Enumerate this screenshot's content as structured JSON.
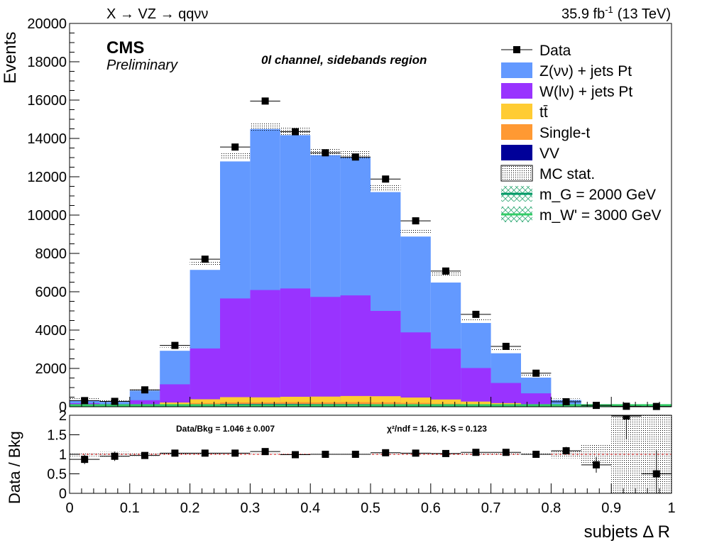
{
  "header": {
    "process": "X → VZ → qqνν",
    "lumi_value": "35.9 fb",
    "lumi_exp": "-1",
    "energy": "(13 TeV)"
  },
  "labels": {
    "experiment": "CMS",
    "status": "Preliminary",
    "region": "0l channel, sidebands region"
  },
  "chart_data": [
    {
      "type": "bar",
      "stacked": true,
      "x": [
        0.025,
        0.075,
        0.125,
        0.175,
        0.225,
        0.275,
        0.325,
        0.375,
        0.425,
        0.475,
        0.525,
        0.575,
        0.625,
        0.675,
        0.725,
        0.775,
        0.825,
        0.875,
        0.925,
        0.975
      ],
      "bin_edges": [
        0,
        0.05,
        0.1,
        0.15,
        0.2,
        0.25,
        0.3,
        0.35,
        0.4,
        0.45,
        0.5,
        0.55,
        0.6,
        0.65,
        0.7,
        0.75,
        0.8,
        0.85,
        0.9,
        0.95,
        1.0
      ],
      "xlim": [
        0,
        1
      ],
      "ylim": [
        0,
        20000
      ],
      "xlabel": "",
      "ylabel": "Events",
      "yticks": [
        0,
        2000,
        4000,
        6000,
        8000,
        10000,
        12000,
        14000,
        16000,
        18000,
        20000
      ],
      "legend_position": "top-right",
      "series": [
        {
          "name": "Z(νν) + jets Pt",
          "color": "#6399ff",
          "values": [
            150,
            120,
            500,
            1750,
            4100,
            7150,
            8400,
            8000,
            7400,
            7200,
            6200,
            5000,
            3450,
            2350,
            1550,
            820,
            220,
            60,
            25,
            10
          ]
        },
        {
          "name": "W(lν) + jets Pt",
          "color": "#9933ff",
          "values": [
            120,
            90,
            250,
            950,
            2650,
            5150,
            5600,
            5650,
            5200,
            5250,
            4450,
            3400,
            2650,
            1750,
            1050,
            570,
            90,
            30,
            10,
            5
          ]
        },
        {
          "name": "tt̄",
          "color": "#ffcc33",
          "values": [
            20,
            15,
            30,
            100,
            200,
            270,
            260,
            280,
            300,
            320,
            320,
            280,
            220,
            150,
            100,
            70,
            20,
            5,
            2,
            1
          ]
        },
        {
          "name": "Single-t",
          "color": "#ff9933",
          "values": [
            15,
            10,
            20,
            40,
            70,
            80,
            80,
            90,
            90,
            100,
            100,
            90,
            70,
            50,
            40,
            30,
            10,
            3,
            1,
            1
          ]
        },
        {
          "name": "VV",
          "color": "#000099",
          "values": [
            30,
            20,
            40,
            80,
            120,
            150,
            150,
            150,
            140,
            140,
            130,
            110,
            90,
            70,
            50,
            30,
            10,
            3,
            1,
            1
          ]
        }
      ],
      "mc_stat": {
        "name": "MC stat.",
        "values": [
          400,
          300,
          850,
          3150,
          7450,
          13100,
          14600,
          14350,
          13300,
          13150,
          11400,
          9150,
          6900,
          4550,
          2950,
          1650,
          370,
          110,
          40,
          20
        ]
      },
      "data": {
        "name": "Data",
        "values": [
          320,
          280,
          880,
          3200,
          7700,
          13550,
          15950,
          14350,
          13250,
          13030,
          11880,
          9700,
          7080,
          4820,
          3150,
          1750,
          260,
          70,
          25,
          15
        ]
      },
      "signals": [
        {
          "name": "m_G = 2000 GeV",
          "color": "#009966",
          "values": [
            20,
            20,
            20,
            20,
            20,
            20,
            20,
            20,
            20,
            20,
            20,
            20,
            20,
            20,
            20,
            20,
            20,
            20,
            20,
            20
          ]
        },
        {
          "name": "m_W' = 3000 GeV",
          "color": "#33cc66",
          "values": [
            80,
            80,
            80,
            80,
            80,
            80,
            80,
            80,
            80,
            80,
            80,
            80,
            80,
            80,
            80,
            80,
            80,
            80,
            80,
            80
          ]
        }
      ]
    },
    {
      "type": "scatter",
      "x": [
        0.025,
        0.075,
        0.125,
        0.175,
        0.225,
        0.275,
        0.325,
        0.375,
        0.425,
        0.475,
        0.525,
        0.575,
        0.625,
        0.675,
        0.725,
        0.775,
        0.825,
        0.875,
        0.925,
        0.975
      ],
      "xlim": [
        0,
        1
      ],
      "ylim": [
        0,
        2
      ],
      "xlabel": "subjets Δ R",
      "ylabel": "Data / Bkg",
      "xticks": [
        0,
        0.1,
        0.2,
        0.3,
        0.4,
        0.5,
        0.6,
        0.7,
        0.8,
        0.9,
        1
      ],
      "yticks": [
        0,
        0.5,
        1,
        1.5,
        2
      ],
      "ratio_values": [
        0.87,
        0.95,
        0.97,
        1.03,
        1.03,
        1.03,
        1.07,
        0.99,
        1.0,
        1.0,
        1.04,
        1.03,
        1.02,
        1.05,
        1.05,
        1.0,
        1.09,
        0.73,
        1.98,
        0.5
      ],
      "ratio_errors": [
        0.12,
        0.12,
        0.06,
        0.03,
        0.02,
        0.015,
        0.015,
        0.015,
        0.015,
        0.015,
        0.015,
        0.02,
        0.02,
        0.03,
        0.04,
        0.05,
        0.1,
        0.2,
        0.6,
        0.6
      ],
      "mc_band_halfwidth": [
        0.05,
        0.06,
        0.04,
        0.02,
        0.015,
        0.01,
        0.01,
        0.01,
        0.01,
        0.01,
        0.01,
        0.012,
        0.015,
        0.02,
        0.025,
        0.035,
        0.1,
        0.25,
        1.0,
        1.0
      ],
      "annotations": {
        "normalization": "Data/Bkg = 1.046 ± 0.007",
        "fit_stats": "χ²/ndf = 1.26,   K-S = 0.123"
      }
    }
  ]
}
